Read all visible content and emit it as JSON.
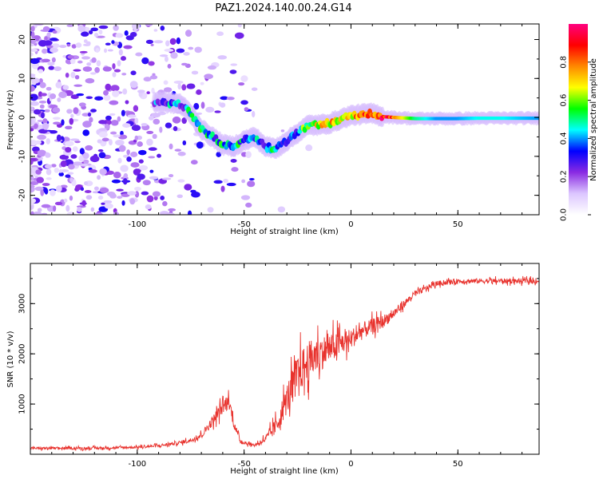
{
  "figure_title": "PAZ1.2024.140.00.24.G14",
  "chart_data": [
    {
      "type": "heatmap",
      "title": "PAZ1.2024.140.00.24.G14",
      "xlabel": "Height of straight line (km)",
      "ylabel": "Frequency (Hz)",
      "xlim": [
        -150,
        88
      ],
      "ylim": [
        -25,
        24
      ],
      "x_ticks": [
        -100,
        -50,
        0,
        50
      ],
      "y_ticks": [
        -20,
        -10,
        0,
        10,
        20
      ],
      "colorbar": {
        "label": "Normalized spectral amplitude",
        "range": [
          0,
          1
        ],
        "ticks": [
          0.0,
          0.2,
          0.4,
          0.6,
          0.8
        ],
        "colors": [
          "#ffffff",
          "#dcc6ff",
          "#8a2be2",
          "#0000ff",
          "#00ffff",
          "#00ff00",
          "#ffff00",
          "#ff8800",
          "#ff0000",
          "#ff007f"
        ]
      },
      "ridge": {
        "x": [
          -90,
          -80,
          -75,
          -70,
          -65,
          -60,
          -55,
          -50,
          -45,
          -40,
          -35,
          -30,
          -25,
          -20,
          -15,
          -10,
          -5,
          0,
          5,
          10,
          15,
          20,
          30,
          40,
          50,
          60,
          70,
          80,
          88
        ],
        "y": [
          4,
          3.5,
          1,
          -3,
          -5,
          -7,
          -7.5,
          -6,
          -5,
          -7.5,
          -8,
          -6,
          -4,
          -2,
          -2,
          -1.5,
          -0.5,
          0.5,
          0.8,
          1,
          0.2,
          0,
          -0.3,
          -0.3,
          -0.3,
          -0.2,
          -0.2,
          -0.2,
          -0.2
        ],
        "amplitude": [
          0.35,
          0.35,
          0.4,
          0.45,
          0.4,
          0.45,
          0.45,
          0.4,
          0.35,
          0.4,
          0.42,
          0.4,
          0.4,
          0.6,
          0.7,
          0.7,
          0.6,
          0.65,
          0.75,
          0.85,
          0.9,
          0.8,
          0.5,
          0.4,
          0.4,
          0.45,
          0.45,
          0.42,
          0.4
        ]
      }
    },
    {
      "type": "line",
      "xlabel": "Height of straight line (km)",
      "ylabel": "SNR (10 * v/v)",
      "xlim": [
        -150,
        88
      ],
      "ylim": [
        0,
        3800
      ],
      "x_ticks": [
        -100,
        -50,
        0,
        50
      ],
      "y_ticks": [
        1000,
        2000,
        3000
      ],
      "color": "#e8322d",
      "series": [
        {
          "x": [
            -150,
            -120,
            -100,
            -90,
            -80,
            -75,
            -70,
            -65,
            -60,
            -57,
            -55,
            -52,
            -50,
            -45,
            -40,
            -35,
            -30,
            -25,
            -20,
            -15,
            -10,
            -5,
            0,
            5,
            10,
            15,
            20,
            25,
            30,
            40,
            50,
            60,
            70,
            80,
            88
          ],
          "y": [
            120,
            120,
            140,
            170,
            230,
            280,
            380,
            650,
            950,
            1050,
            650,
            280,
            230,
            180,
            300,
            560,
            1100,
            1600,
            1850,
            2000,
            2100,
            2200,
            2300,
            2450,
            2550,
            2650,
            2800,
            3000,
            3200,
            3400,
            3450,
            3450,
            3450,
            3450,
            3450
          ],
          "noise": [
            50,
            50,
            50,
            60,
            70,
            90,
            120,
            200,
            300,
            300,
            200,
            80,
            70,
            60,
            150,
            350,
            600,
            800,
            800,
            700,
            600,
            500,
            400,
            350,
            300,
            250,
            200,
            150,
            120,
            100,
            100,
            100,
            100,
            100,
            100
          ]
        }
      ]
    }
  ]
}
